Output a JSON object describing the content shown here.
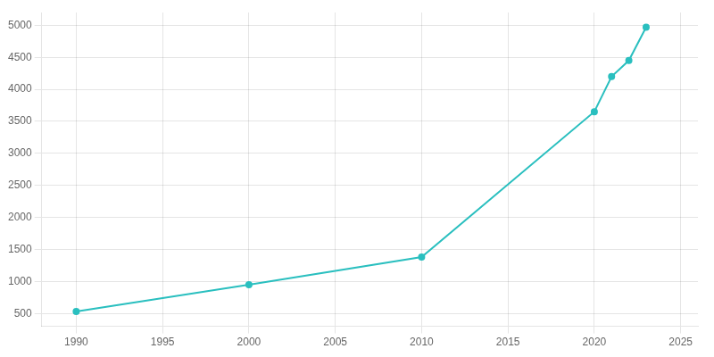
{
  "chart_data": {
    "type": "line",
    "x": [
      1990,
      2000,
      2010,
      2020,
      2021,
      2022,
      2023
    ],
    "values": [
      530,
      950,
      1380,
      3650,
      4200,
      4450,
      4970
    ],
    "color": "#2abfbf",
    "xlim": [
      1988,
      2026
    ],
    "xticks": [
      1990,
      1995,
      2000,
      2005,
      2010,
      2015,
      2020,
      2025
    ],
    "ylim": [
      300,
      5200
    ],
    "yticks": [
      500,
      1000,
      1500,
      2000,
      2500,
      3000,
      3500,
      4000,
      4500,
      5000
    ],
    "grid": true
  }
}
